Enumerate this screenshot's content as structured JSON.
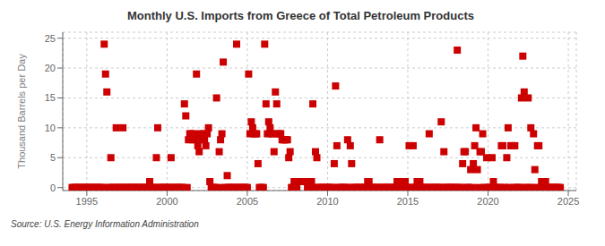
{
  "chart_data": {
    "type": "scatter",
    "title": "Monthly U.S. Imports from Greece of Total Petroleum Products",
    "ylabel": "Thousand Barrels per Day",
    "annotation": "Source: U.S. Energy Information Administration",
    "color": "#cc0000",
    "marker": "square",
    "grid": true,
    "xlim": [
      1993.5,
      2025.5
    ],
    "ylim": [
      -0.5,
      26
    ],
    "xticks": [
      1995,
      2000,
      2005,
      2010,
      2015,
      2020,
      2025
    ],
    "yticks": [
      0,
      5,
      10,
      15,
      20,
      25
    ],
    "x": [
      1994.083,
      1994.167,
      1994.25,
      1994.333,
      1994.417,
      1994.5,
      1994.583,
      1994.667,
      1994.75,
      1994.833,
      1994.917,
      1995.0,
      1995.083,
      1995.167,
      1995.25,
      1995.333,
      1995.417,
      1995.5,
      1995.583,
      1995.667,
      1995.75,
      1995.833,
      1995.917,
      1996.0,
      1996.083,
      1996.167,
      1996.25,
      1996.333,
      1996.417,
      1996.5,
      1996.583,
      1996.667,
      1996.75,
      1996.833,
      1996.917,
      1997.0,
      1997.083,
      1997.167,
      1997.25,
      1997.333,
      1997.417,
      1997.5,
      1997.583,
      1997.667,
      1997.75,
      1997.833,
      1997.917,
      1998.0,
      1998.083,
      1998.167,
      1998.25,
      1998.333,
      1998.417,
      1998.5,
      1998.583,
      1998.667,
      1998.75,
      1998.833,
      1998.917,
      1999.0,
      1999.083,
      1999.167,
      1999.25,
      1999.333,
      1999.417,
      1999.5,
      1999.583,
      1999.667,
      1999.75,
      1999.833,
      1999.917,
      2000.0,
      2000.083,
      2000.167,
      2000.25,
      2000.333,
      2000.417,
      2000.5,
      2000.583,
      2000.667,
      2000.75,
      2000.833,
      2000.917,
      2001.0,
      2001.083,
      2001.167,
      2001.25,
      2001.333,
      2001.417,
      2001.5,
      2001.583,
      2001.667,
      2001.75,
      2001.833,
      2001.917,
      2002.0,
      2002.083,
      2002.167,
      2002.25,
      2002.333,
      2002.417,
      2002.5,
      2002.583,
      2002.667,
      2002.75,
      2002.833,
      2002.917,
      2003.0,
      2003.083,
      2003.167,
      2003.25,
      2003.333,
      2003.417,
      2003.5,
      2003.583,
      2003.667,
      2003.75,
      2003.833,
      2003.917,
      2004.0,
      2004.083,
      2004.167,
      2004.25,
      2004.333,
      2004.417,
      2004.5,
      2004.583,
      2004.667,
      2004.75,
      2004.833,
      2004.917,
      2005.0,
      2005.083,
      2005.167,
      2005.25,
      2005.333,
      2005.417,
      2005.5,
      2005.583,
      2005.667,
      2005.75,
      2005.833,
      2005.917,
      2006.0,
      2006.083,
      2006.167,
      2006.25,
      2006.333,
      2006.417,
      2006.5,
      2006.583,
      2006.667,
      2006.75,
      2006.833,
      2006.917,
      2007.0,
      2007.083,
      2007.167,
      2007.25,
      2007.333,
      2007.417,
      2007.5,
      2007.583,
      2007.667,
      2007.75,
      2007.833,
      2007.917,
      2008.0,
      2008.083,
      2008.167,
      2008.25,
      2008.333,
      2008.417,
      2008.5,
      2008.583,
      2008.667,
      2008.75,
      2008.833,
      2008.917,
      2009.0,
      2009.083,
      2009.167,
      2009.25,
      2009.333,
      2009.417,
      2009.5,
      2009.583,
      2009.667,
      2009.75,
      2009.833,
      2009.917,
      2010.0,
      2010.083,
      2010.167,
      2010.25,
      2010.333,
      2010.417,
      2010.5,
      2010.583,
      2010.667,
      2010.75,
      2010.833,
      2010.917,
      2011.0,
      2011.083,
      2011.167,
      2011.25,
      2011.333,
      2011.417,
      2011.5,
      2011.583,
      2011.667,
      2011.75,
      2011.833,
      2011.917,
      2012.0,
      2012.083,
      2012.167,
      2012.25,
      2012.333,
      2012.417,
      2012.5,
      2012.583,
      2012.667,
      2012.75,
      2012.833,
      2012.917,
      2013.0,
      2013.083,
      2013.167,
      2013.25,
      2013.333,
      2013.417,
      2013.5,
      2013.583,
      2013.667,
      2013.75,
      2013.833,
      2013.917,
      2014.0,
      2014.083,
      2014.167,
      2014.25,
      2014.333,
      2014.417,
      2014.5,
      2014.583,
      2014.667,
      2014.75,
      2014.833,
      2014.917,
      2015.0,
      2015.083,
      2015.167,
      2015.25,
      2015.333,
      2015.417,
      2015.5,
      2015.583,
      2015.667,
      2015.75,
      2015.833,
      2015.917,
      2016.0,
      2016.083,
      2016.167,
      2016.25,
      2016.333,
      2016.417,
      2016.5,
      2016.583,
      2016.667,
      2016.75,
      2016.833,
      2016.917,
      2017.0,
      2017.083,
      2017.167,
      2017.25,
      2017.333,
      2017.417,
      2017.5,
      2017.583,
      2017.667,
      2017.75,
      2017.833,
      2017.917,
      2018.0,
      2018.083,
      2018.167,
      2018.25,
      2018.333,
      2018.417,
      2018.5,
      2018.583,
      2018.667,
      2018.75,
      2018.833,
      2018.917,
      2019.0,
      2019.083,
      2019.167,
      2019.25,
      2019.333,
      2019.417,
      2019.5,
      2019.583,
      2019.667,
      2019.75,
      2019.833,
      2019.917,
      2020.0,
      2020.083,
      2020.167,
      2020.25,
      2020.333,
      2020.417,
      2020.5,
      2020.583,
      2020.667,
      2020.75,
      2020.833,
      2020.917,
      2021.0,
      2021.083,
      2021.167,
      2021.25,
      2021.333,
      2021.417,
      2021.5,
      2021.583,
      2021.667,
      2021.75,
      2021.833,
      2021.917,
      2022.0,
      2022.083,
      2022.167,
      2022.25,
      2022.333,
      2022.417,
      2022.5,
      2022.583,
      2022.667,
      2022.75,
      2022.833,
      2022.917,
      2023.0,
      2023.083,
      2023.167,
      2023.25,
      2023.333,
      2023.417,
      2023.5,
      2023.583,
      2023.667,
      2023.75,
      2023.833,
      2023.917,
      2024.0,
      2024.083,
      2024.167,
      2024.25,
      2024.333,
      2024.417,
      2024.5
    ],
    "values": [
      0,
      0,
      0,
      0,
      0,
      0,
      0,
      0,
      0,
      0,
      0,
      0,
      0,
      0,
      0,
      0,
      0,
      0,
      0,
      0,
      0,
      0,
      0,
      0,
      24,
      19,
      16,
      0,
      0,
      5,
      0,
      0,
      0,
      10,
      0,
      0,
      0,
      0,
      10,
      0,
      0,
      0,
      0,
      0,
      0,
      0,
      0,
      0,
      0,
      0,
      0,
      0,
      0,
      0,
      0,
      0,
      0,
      0,
      1,
      0,
      0,
      0,
      0,
      5,
      10,
      0,
      0,
      0,
      0,
      0,
      0,
      0,
      0,
      0,
      5,
      0,
      0,
      0,
      0,
      0,
      0,
      0,
      0,
      0,
      14,
      12,
      0,
      8,
      9,
      9,
      8,
      9,
      8,
      19,
      7,
      6,
      9,
      8,
      9,
      8,
      7,
      9,
      10,
      1,
      0,
      0,
      0,
      0,
      15,
      0,
      6,
      8,
      9,
      21,
      0,
      0,
      2,
      0,
      0,
      0,
      0,
      0,
      0,
      24,
      0,
      0,
      0,
      0,
      0,
      0,
      0,
      0,
      19,
      9,
      11,
      10,
      9,
      9,
      9,
      4,
      0,
      0,
      0,
      0,
      24,
      14,
      9,
      11,
      10,
      9,
      9,
      6,
      16,
      14,
      9,
      9,
      9,
      8,
      8,
      8,
      8,
      8,
      5,
      6,
      0,
      0,
      1,
      0,
      0,
      1,
      1,
      1,
      1,
      1,
      1,
      1,
      0,
      0,
      1,
      1,
      14,
      0,
      6,
      5,
      0,
      0,
      0,
      0,
      0,
      0,
      0,
      0,
      0,
      0,
      0,
      0,
      4,
      17,
      7,
      0,
      0,
      0,
      0,
      0,
      0,
      0,
      8,
      0,
      7,
      4,
      0,
      0,
      0,
      0,
      0,
      0,
      0,
      0,
      0,
      0,
      0,
      1,
      1,
      0,
      0,
      0,
      0,
      0,
      0,
      0,
      8,
      0,
      0,
      0,
      0,
      0,
      0,
      0,
      0,
      0,
      0,
      0,
      0,
      1,
      1,
      0,
      0,
      1,
      0,
      1,
      0,
      0,
      7,
      0,
      0,
      7,
      0,
      0,
      1,
      0,
      1,
      0,
      0,
      0,
      0,
      0,
      0,
      9,
      0,
      0,
      0,
      0,
      0,
      0,
      0,
      0,
      11,
      0,
      6,
      0,
      0,
      0,
      0,
      0,
      0,
      0,
      0,
      0,
      23,
      0,
      0,
      0,
      4,
      6,
      6,
      0,
      0,
      0,
      3,
      0,
      4,
      7,
      10,
      3,
      0,
      6,
      6,
      9,
      0,
      0,
      5,
      0,
      0,
      0,
      5,
      1,
      0,
      0,
      0,
      0,
      0,
      7,
      7,
      0,
      0,
      5,
      10,
      0,
      7,
      7,
      0,
      7,
      0,
      0,
      0,
      0,
      15,
      22,
      16,
      0,
      0,
      15,
      0,
      10,
      0,
      9,
      3,
      0,
      7,
      7,
      0,
      1,
      0,
      0,
      1,
      0,
      0,
      0,
      0,
      0,
      0,
      0,
      0,
      0,
      0,
      0
    ]
  }
}
